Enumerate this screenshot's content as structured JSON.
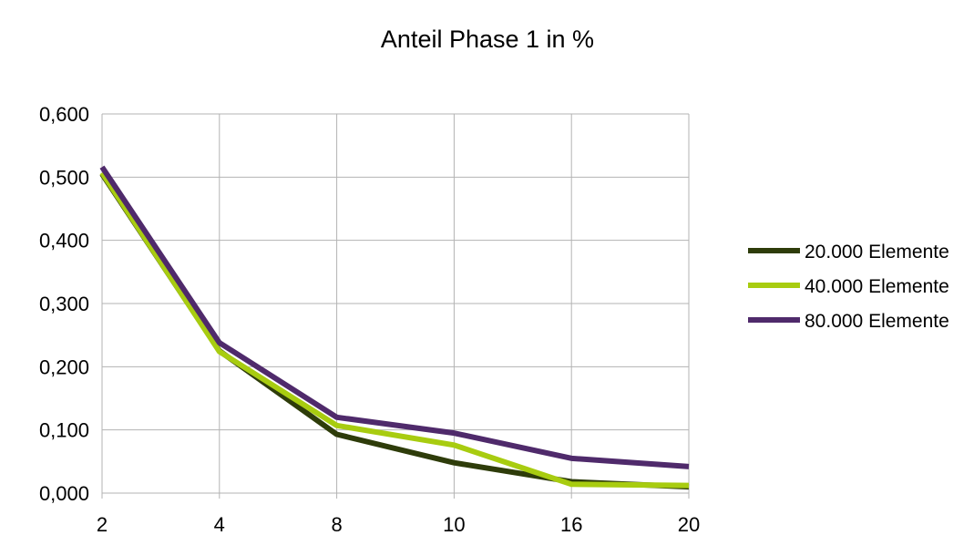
{
  "chart_data": {
    "type": "line",
    "title": "Anteil Phase 1 in %",
    "xlabel": "",
    "ylabel": "",
    "categories": [
      "2",
      "4",
      "8",
      "10",
      "16",
      "20"
    ],
    "y_ticks": [
      "0,000",
      "0,100",
      "0,200",
      "0,300",
      "0,400",
      "0,500",
      "0,600"
    ],
    "ylim": [
      0,
      0.6
    ],
    "grid": true,
    "legend_position": "right",
    "series": [
      {
        "name": "20.000 Elemente",
        "color": "#2e3c0a",
        "values": [
          0.505,
          0.225,
          0.093,
          0.048,
          0.018,
          0.01
        ]
      },
      {
        "name": "40.000 Elemente",
        "color": "#a8cc10",
        "values": [
          0.507,
          0.224,
          0.107,
          0.076,
          0.014,
          0.012
        ]
      },
      {
        "name": "80.000 Elemente",
        "color": "#4f2a6b",
        "values": [
          0.516,
          0.238,
          0.12,
          0.095,
          0.055,
          0.042
        ]
      }
    ]
  }
}
